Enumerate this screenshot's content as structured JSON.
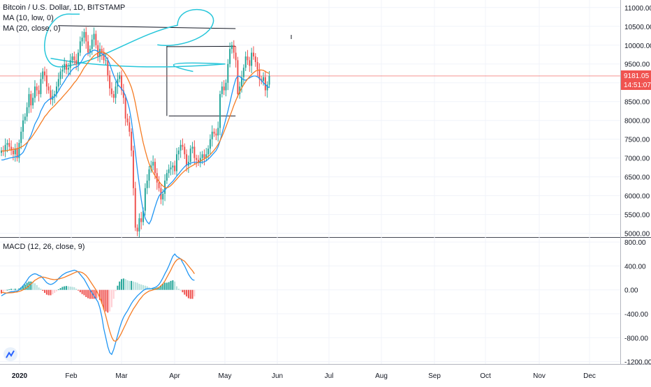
{
  "legend": {
    "title": "Bitcoin / U.S. Dollar, 1D, BITSTAMP",
    "ma10": "MA (10, low, 0)",
    "ma20": "MA (20, close, 0)",
    "macd": "MACD (12, 26, close, 9)"
  },
  "price_tag": {
    "value": "9181.05",
    "countdown": "14:51:07"
  },
  "colors": {
    "up": "#26a69a",
    "down": "#ef5350",
    "ma10": "#2196f3",
    "ma20": "#f57c24",
    "macd": "#2196f3",
    "signal": "#f57c24",
    "annotation": "#26c6da",
    "price_tag": "#f05350"
  },
  "icons": {
    "logo": "tradingview-logo-icon"
  },
  "chart_data": [
    {
      "type": "candlestick",
      "title": "Bitcoin / U.S. Dollar, 1D, BITSTAMP",
      "ylim": [
        4900,
        11200
      ],
      "y_ticks": [
        5000,
        5500,
        6000,
        6500,
        7000,
        7500,
        8000,
        8500,
        9000,
        9500,
        10000,
        10500,
        11000
      ],
      "y_tick_labels": [
        "5000.00",
        "5500.00",
        "6000.00",
        "6500.00",
        "7000.00",
        "7500.00",
        "8000.00",
        "8500.00",
        "9000.00",
        "9500.00",
        "10000.00",
        "10500.00",
        "11000.00"
      ],
      "x_tick_labels": [
        "2020",
        "Feb",
        "Mar",
        "Apr",
        "May",
        "Jun",
        "Jul",
        "Aug",
        "Sep",
        "Oct",
        "Nov",
        "Dec"
      ],
      "current_price": 9181.05,
      "close": [
        7200,
        7180,
        7350,
        7400,
        7300,
        7200,
        7100,
        7250,
        7000,
        7400,
        7700,
        8000,
        8100,
        8350,
        8700,
        8400,
        8600,
        8900,
        8800,
        8700,
        9100,
        9300,
        9200,
        8900,
        8800,
        8550,
        8650,
        8700,
        8900,
        9100,
        9300,
        9350,
        9500,
        9350,
        9400,
        9600,
        9700,
        9600,
        9500,
        9800,
        10100,
        10200,
        10350,
        10100,
        9800,
        9900,
        10150,
        10300,
        10000,
        9700,
        9900,
        9800,
        9600,
        9600,
        9200,
        8850,
        8700,
        8600,
        8900,
        9100,
        9200,
        8800,
        8600,
        8050,
        7950,
        7700,
        7200,
        6200,
        5150,
        5050,
        5400,
        5300,
        5600,
        6200,
        6400,
        6700,
        6800,
        6900,
        6600,
        6350,
        6200,
        5900,
        6050,
        6400,
        6600,
        6700,
        6750,
        6800,
        6650,
        7100,
        7200,
        7350,
        7300,
        7100,
        6800,
        6900,
        7250,
        7300,
        7000,
        6950,
        6880,
        7000,
        7100,
        7000,
        7100,
        7250,
        7500,
        7700,
        7650,
        7600,
        7800,
        8700,
        8900,
        8800,
        9000,
        9500,
        9900,
        10000,
        9800,
        9600,
        8700,
        8900,
        9150,
        9400,
        9700,
        9600,
        9450,
        9800,
        9700,
        9550,
        9350,
        9100,
        9050,
        9150,
        8800,
        8950,
        9181
      ],
      "series": [
        {
          "name": "MA (10, low, 0)",
          "values": [
            6950,
            6950,
            6970,
            6980,
            7000,
            7010,
            7020,
            7030,
            7040,
            7060,
            7100,
            7150,
            7250,
            7380,
            7500,
            7600,
            7750,
            7900,
            8000,
            8100,
            8250,
            8350,
            8450,
            8500,
            8550,
            8580,
            8600,
            8630,
            8700,
            8780,
            8880,
            8960,
            9040,
            9130,
            9200,
            9280,
            9350,
            9400,
            9420,
            9450,
            9520,
            9600,
            9700,
            9760,
            9780,
            9800,
            9840,
            9870,
            9860,
            9830,
            9800,
            9780,
            9740,
            9690,
            9620,
            9500,
            9340,
            9200,
            9070,
            8960,
            8900,
            8840,
            8770,
            8650,
            8500,
            8300,
            8000,
            7600,
            7150,
            6700,
            6300,
            5900,
            5600,
            5400,
            5300,
            5250,
            5350,
            5520,
            5700,
            5860,
            5990,
            6060,
            6100,
            6150,
            6210,
            6280,
            6330,
            6380,
            6450,
            6520,
            6580,
            6650,
            6710,
            6770,
            6820,
            6840,
            6860,
            6880,
            6890,
            6890,
            6880,
            6880,
            6890,
            6900,
            6930,
            6970,
            7020,
            7080,
            7140,
            7200,
            7300,
            7450,
            7650,
            7850,
            8050,
            8250,
            8470,
            8700,
            8920,
            9100,
            9180,
            9170,
            9120,
            9080,
            9070,
            9100,
            9130,
            9160,
            9180,
            9180,
            9160,
            9120,
            9060,
            9000,
            8950,
            8900,
            8870
          ]
        },
        {
          "name": "MA (20, close, 0)",
          "values": [
            7190,
            7185,
            7190,
            7200,
            7210,
            7220,
            7230,
            7240,
            7250,
            7270,
            7290,
            7320,
            7360,
            7410,
            7470,
            7530,
            7600,
            7680,
            7760,
            7840,
            7930,
            8010,
            8100,
            8160,
            8230,
            8290,
            8340,
            8390,
            8450,
            8510,
            8560,
            8620,
            8680,
            8740,
            8800,
            8860,
            8930,
            9000,
            9060,
            9140,
            9220,
            9310,
            9400,
            9470,
            9540,
            9600,
            9660,
            9720,
            9760,
            9790,
            9810,
            9820,
            9810,
            9780,
            9740,
            9700,
            9650,
            9600,
            9540,
            9490,
            9440,
            9380,
            9310,
            9220,
            9120,
            9010,
            8880,
            8700,
            8460,
            8180,
            7920,
            7660,
            7410,
            7200,
            7010,
            6850,
            6720,
            6620,
            6530,
            6450,
            6380,
            6310,
            6260,
            6220,
            6210,
            6230,
            6270,
            6320,
            6380,
            6440,
            6500,
            6560,
            6610,
            6660,
            6700,
            6740,
            6770,
            6800,
            6830,
            6860,
            6890,
            6920,
            6950,
            6980,
            7010,
            7040,
            7090,
            7150,
            7210,
            7280,
            7360,
            7460,
            7570,
            7700,
            7830,
            7970,
            8110,
            8250,
            8400,
            8530,
            8650,
            8760,
            8860,
            8950,
            9030,
            9100,
            9160,
            9220,
            9270,
            9310,
            9330,
            9340,
            9340,
            9330,
            9300,
            9270,
            9250
          ]
        }
      ],
      "annotations": {
        "lines": [
          {
            "x0_index": 29,
            "y0": 10520,
            "x1_index": 110,
            "y1": 10440
          },
          {
            "x0_index": 84,
            "y0": 9960,
            "x1_index": 110,
            "y1": 9970
          },
          {
            "x0_index": 85,
            "y0": 8120,
            "x1_index": 110,
            "y1": 8120
          }
        ],
        "shapes": [
          {
            "type": "ellipse-top",
            "price_range": [
              9500,
              10750
            ],
            "index_range": [
              22,
              104
            ]
          },
          {
            "type": "curve-low",
            "price_range": [
              9300,
              9700
            ],
            "index_range": [
              25,
              92
            ]
          }
        ]
      }
    },
    {
      "type": "line",
      "title": "MACD (12, 26, close, 9)",
      "ylim": [
        -1240,
        860
      ],
      "y_ticks": [
        800,
        400,
        0,
        -400,
        -800,
        -1200
      ],
      "y_tick_labels": [
        "800.00",
        "400.00",
        "0.00",
        "-400.00",
        "-800.00",
        "-1200.00"
      ],
      "series": [
        {
          "name": "MACD",
          "values": [
            -100,
            -80,
            -60,
            -50,
            -40,
            -30,
            -30,
            -20,
            -20,
            0,
            30,
            70,
            110,
            160,
            210,
            240,
            260,
            270,
            260,
            240,
            230,
            200,
            160,
            120,
            100,
            90,
            100,
            120,
            150,
            190,
            220,
            250,
            270,
            290,
            300,
            310,
            320,
            330,
            320,
            300,
            260,
            220,
            180,
            120,
            60,
            0,
            -50,
            -100,
            -150,
            -200,
            -300,
            -450,
            -650,
            -800,
            -950,
            -1050,
            -1080,
            -1000,
            -880,
            -760,
            -640,
            -540,
            -460,
            -400,
            -350,
            -290,
            -230,
            -180,
            -140,
            -100,
            -70,
            -40,
            -10,
            10,
            20,
            20,
            20,
            30,
            40,
            60,
            90,
            140,
            200,
            270,
            330,
            400,
            480,
            560,
            600,
            560,
            540,
            520,
            460,
            400,
            330,
            260,
            210,
            170,
            160
          ]
        },
        {
          "name": "Signal",
          "values": [
            -40,
            -45,
            -50,
            -52,
            -50,
            -48,
            -45,
            -40,
            -35,
            -25,
            -15,
            0,
            20,
            40,
            70,
            100,
            130,
            160,
            180,
            200,
            210,
            215,
            210,
            200,
            190,
            180,
            175,
            170,
            175,
            180,
            190,
            200,
            210,
            225,
            240,
            255,
            270,
            285,
            300,
            305,
            300,
            290,
            270,
            240,
            200,
            150,
            100,
            50,
            0,
            -60,
            -130,
            -220,
            -320,
            -440,
            -570,
            -690,
            -790,
            -850,
            -860,
            -830,
            -780,
            -720,
            -650,
            -580,
            -510,
            -440,
            -380,
            -320,
            -270,
            -220,
            -170,
            -130,
            -90,
            -60,
            -40,
            -20,
            -10,
            0,
            10,
            20,
            40,
            70,
            100,
            150,
            210,
            270,
            330,
            400,
            460,
            500,
            520,
            520,
            500,
            480,
            440,
            400,
            360,
            320,
            270
          ]
        }
      ]
    }
  ]
}
